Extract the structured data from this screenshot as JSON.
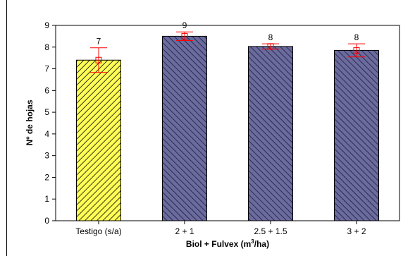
{
  "chart_data": {
    "type": "bar",
    "title": "",
    "xlabel": "Biol + Fulvex (m",
    "xlabel_sup": "3",
    "xlabel_suffix": "/ha)",
    "ylabel": "Nº de hojas",
    "ylim": [
      0,
      9
    ],
    "yticks": [
      "0",
      "1",
      "2",
      "3",
      "4",
      "5",
      "6",
      "7",
      "8",
      "9"
    ],
    "categories": [
      "Testigo (s/a)",
      "2 + 1",
      "2.5 + 1.5",
      "3 + 2"
    ],
    "values": [
      7.4,
      8.5,
      8.03,
      7.85
    ],
    "errors": [
      0.57,
      0.2,
      0.12,
      0.3
    ],
    "data_labels": [
      "7",
      "9",
      "8",
      "8"
    ],
    "bar_colors": [
      "#ffff55",
      "#6b6b9d",
      "#6b6b9d",
      "#6b6b9d"
    ],
    "hatch_color": "#000000",
    "error_color": "#ff0000",
    "grid": false,
    "legend": "none"
  }
}
